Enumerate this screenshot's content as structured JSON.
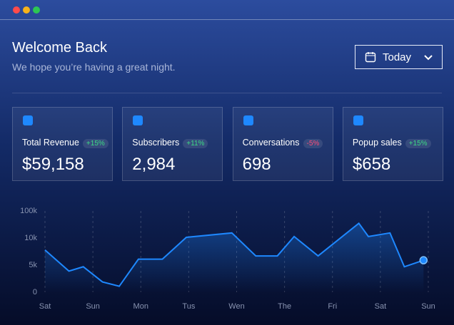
{
  "header": {
    "title": "Welcome Back",
    "subtitle": "We hope you’re having a great night.",
    "button": "Today"
  },
  "cards": [
    {
      "label": "Total Revenue",
      "badge": "+15%",
      "badge_color": "#3ddc84",
      "value": "$59,158"
    },
    {
      "label": "Subscribers",
      "badge": "+11%",
      "badge_color": "#3ddc84",
      "value": "2,984"
    },
    {
      "label": "Conversations",
      "badge": "-5%",
      "badge_color": "#ff4d7a",
      "value": "698"
    },
    {
      "label": "Popup sales",
      "badge": "+15%",
      "badge_color": "#3ddc84",
      "value": "$658"
    }
  ],
  "chart_data": {
    "type": "line",
    "color": "#1e88ff",
    "grid": true,
    "x": [
      0,
      0.5,
      0.8,
      1.2,
      1.55,
      1.95,
      2.45,
      2.95,
      3.9,
      4.4,
      4.85,
      5.2,
      5.7,
      6.55,
      6.75,
      7.2,
      7.5,
      7.9
    ],
    "values": [
      7800,
      3900,
      4700,
      1900,
      1100,
      6100,
      6100,
      12400,
      27000,
      6700,
      6700,
      15000,
      6700,
      59000,
      15000,
      27000,
      4700,
      5900
    ],
    "xlim": [
      0,
      8
    ],
    "xticks": [
      {
        "value": 0,
        "label": "Sat"
      },
      {
        "value": 1,
        "label": "Sun"
      },
      {
        "value": 2,
        "label": "Mon"
      },
      {
        "value": 3,
        "label": "Tus"
      },
      {
        "value": 4,
        "label": "Wen"
      },
      {
        "value": 5,
        "label": "The"
      },
      {
        "value": 6,
        "label": "Fri"
      },
      {
        "value": 7,
        "label": "Sat"
      },
      {
        "value": 8,
        "label": "Sun"
      }
    ],
    "ylim": [
      0,
      100000
    ],
    "yticks": [
      0,
      {
        "value": 5000,
        "label": "5k"
      },
      {
        "value": 10000,
        "label": "10k"
      },
      {
        "value": 100000,
        "label": "100k"
      }
    ]
  }
}
